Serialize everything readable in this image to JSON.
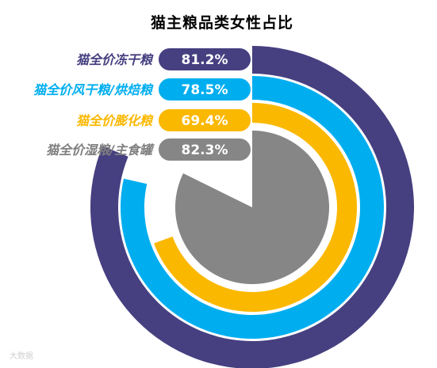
{
  "chart_data": {
    "type": "radial-bar",
    "title": "猫主粮品类女性占比",
    "unit": "%",
    "categories": [
      "猫全价冻干粮",
      "猫全价风干粮/烘焙粮",
      "猫全价膨化粮",
      "猫全价湿粮/主食罐"
    ],
    "values": [
      81.2,
      78.5,
      69.4,
      82.3
    ],
    "value_labels": [
      "81.2%",
      "78.5%",
      "69.4%",
      "82.3%"
    ],
    "colors": [
      "#463f80",
      "#00aeef",
      "#fbb800",
      "#868686"
    ],
    "label_colors": [
      "#463f80",
      "#00aeef",
      "#fbb800",
      "#7f7f7f"
    ],
    "track_color": "#ffffff"
  },
  "watermark": "大数据"
}
